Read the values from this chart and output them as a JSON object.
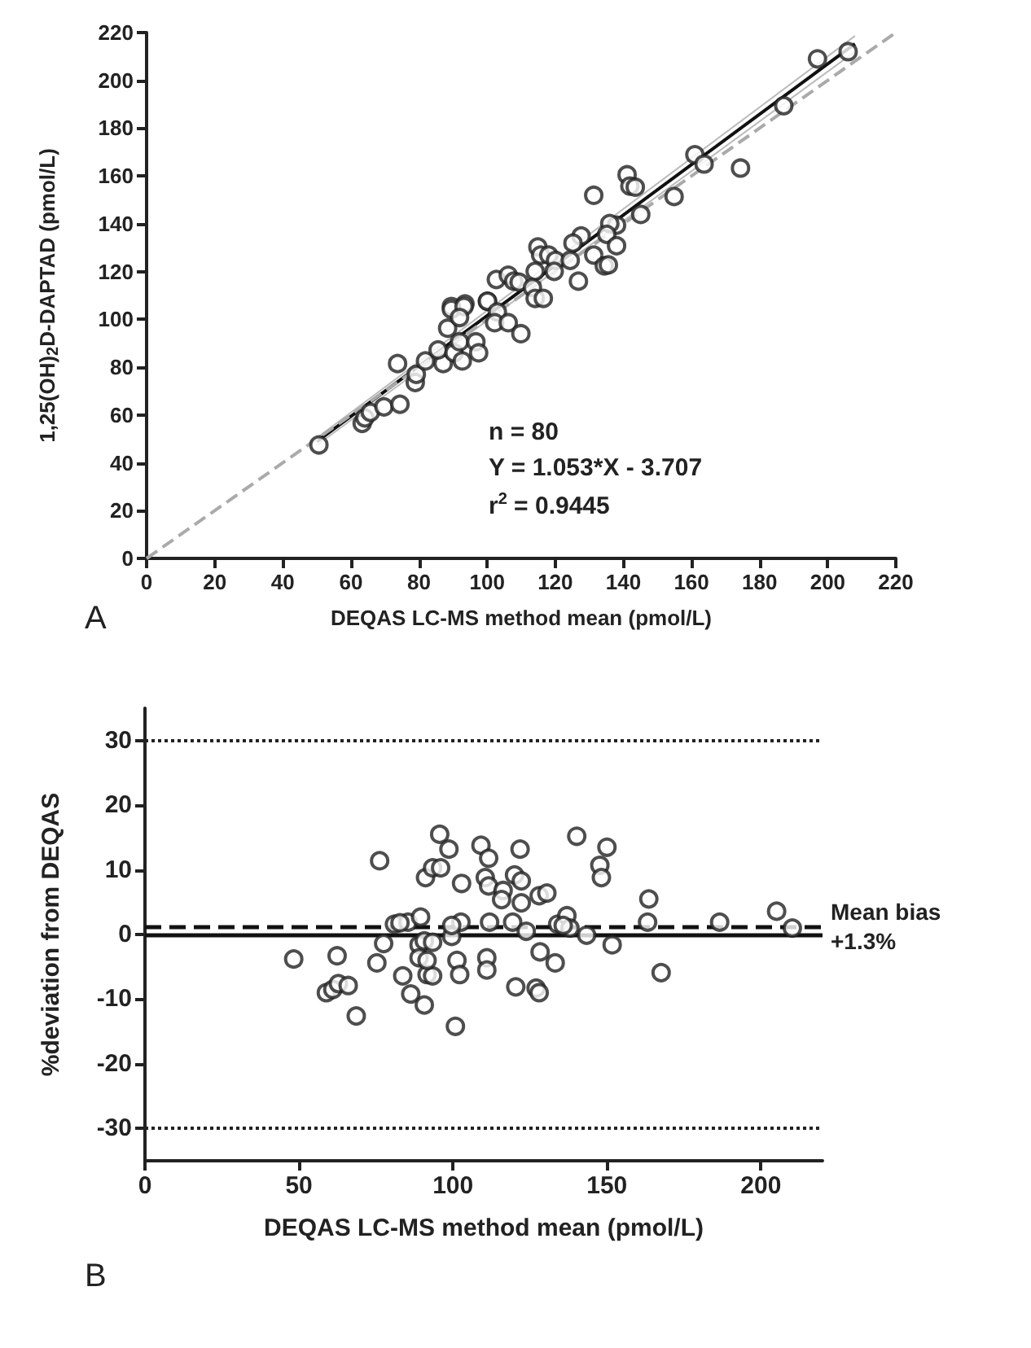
{
  "chart_data": [
    {
      "type": "scatter",
      "xlabel": "DEQAS LC-MS method mean (pmol/L)",
      "ylabel": "1,25(OH)$_{2}$D-DAPTAD (pmol/L)",
      "xlim": [
        0,
        220
      ],
      "ylim": [
        0,
        220
      ],
      "xticks": [
        0,
        20,
        40,
        60,
        80,
        100,
        120,
        140,
        160,
        180,
        200,
        220
      ],
      "yticks": [
        0,
        20,
        40,
        60,
        80,
        100,
        120,
        140,
        160,
        180,
        200,
        220
      ],
      "annotations": [
        "n = 80",
        "Y = 1.053*X - 3.707",
        "r$^{2}$ = 0.9445",
        "A"
      ],
      "series": [
        {
          "color": "#222222",
          "marker": "circle",
          "x": [
            197,
            206,
            187.1,
            161,
            163.7,
            174.4,
            154.9,
            145.1,
            141.1,
            141.9,
            143.5,
            131.3,
            138,
            136,
            135.1,
            138,
            127.6,
            125.2,
            131.3,
            134.4,
            135.6,
            126.8,
            114.9,
            115.7,
            118.1,
            120.1,
            124.4,
            114.1,
            119.7,
            102.7,
            106.2,
            107.8,
            109.4,
            113.3,
            114.1,
            116.5,
            100.1,
            93.5,
            89.5,
            50.6,
            63.3,
            64.1,
            65.7,
            69.7,
            74.4,
            73.7,
            78.9,
            79.2,
            81.9,
            87.1,
            85.6,
            90.3,
            92.7,
            91.9,
            96.7,
            97.5,
            88.4,
            89.5,
            93.2,
            91.9,
            100.1,
            103,
            102.2,
            106.2,
            109.9
          ],
          "values": [
            209,
            212,
            189.4,
            168.9,
            165,
            163.3,
            151.4,
            143.9,
            160.5,
            155.8,
            155.3,
            151.9,
            139.4,
            140.1,
            135.6,
            130.8,
            134.9,
            131.9,
            126.9,
            122.4,
            122.8,
            116,
            130.3,
            126.9,
            126.9,
            124.7,
            124.7,
            120.1,
            120.1,
            116.7,
            118.5,
            116,
            115.6,
            113.3,
            108.8,
            108.8,
            107.6,
            106.5,
            105.4,
            47.5,
            56.5,
            58.8,
            61.1,
            63.4,
            64.5,
            81.5,
            73.6,
            77,
            82.6,
            81.5,
            87.2,
            86,
            82.6,
            90.6,
            90.6,
            86,
            96.3,
            104.2,
            105.4,
            100.8,
            107.6,
            103.1,
            98.6,
            98.6,
            94
          ]
        },
        {
          "type": "line",
          "color": "#111111",
          "marker": "none",
          "line_style": "solid",
          "x": [
            50,
            208
          ],
          "values": [
            48.9,
            215.3
          ]
        },
        {
          "type": "line",
          "color": "#bbbbbb",
          "marker": "none",
          "line_style": "solid",
          "x": [
            50,
            208
          ],
          "values": [
            47.4,
            212.0
          ]
        },
        {
          "type": "line",
          "color": "#bbbbbb",
          "marker": "none",
          "line_style": "solid",
          "x": [
            50,
            208
          ],
          "values": [
            50.4,
            218.6
          ]
        },
        {
          "type": "line",
          "color": "#aaaaaa",
          "marker": "none",
          "line_style": "dashed",
          "x": [
            0,
            220
          ],
          "values": [
            0,
            220
          ]
        }
      ]
    },
    {
      "type": "scatter",
      "xlabel": "DEQAS LC-MS method mean (pmol/L)",
      "ylabel": "%deviation from DEQAS",
      "xlim": [
        0,
        220
      ],
      "ylim": [
        -35,
        35
      ],
      "xticks": [
        0,
        50,
        100,
        150,
        200
      ],
      "yticks": [
        -30,
        -20,
        -10,
        0,
        10,
        20,
        30
      ],
      "marker": "circle",
      "annotations": [
        "B"
      ],
      "ref_lines": [
        {
          "axis": "y",
          "value": 30,
          "color": "#222222",
          "line_style": "dotted"
        },
        {
          "axis": "y",
          "value": -30,
          "color": "#222222",
          "line_style": "dotted"
        },
        {
          "axis": "y",
          "value": 0,
          "color": "#111111",
          "line_style": "solid"
        },
        {
          "axis": "y",
          "value": 1.3,
          "color": "#111111",
          "line_style": "dashed",
          "label": "Mean bias +1.3%"
        }
      ],
      "series": [
        {
          "color": "#222222",
          "x": [
            48.3,
            62.4,
            58.9,
            61,
            62.8,
            66,
            68.6,
            76.2,
            75.3,
            77.5,
            81,
            83.7,
            86.3,
            85.4,
            89.5,
            90.7,
            89,
            90.7,
            89,
            91.6,
            93.4,
            93.4,
            91.1,
            93.4,
            96,
            95.7,
            98.7,
            99.6,
            102.8,
            102.6,
            101.3,
            102.2,
            100.8,
            109.1,
            111.6,
            110.5,
            111.6,
            111.9,
            111,
            111,
            116.3,
            115.8,
            119.4,
            120,
            121.8,
            122.2,
            122.2,
            123.8,
            120.4,
            127,
            128,
            128.3,
            128,
            130.5,
            133.2,
            134,
            137,
            138,
            143.4,
            140.2,
            150,
            147.7,
            148.2,
            151.7,
            163.6,
            163.2,
            167.6,
            186.6,
            205.1,
            210.2,
            91.6,
            82.8,
            99.6,
            135.8
          ],
          "values": [
            -3.8,
            -3.3,
            -9,
            -8.5,
            -7.6,
            -7.9,
            -12.6,
            11.4,
            -4.4,
            -1.4,
            1.6,
            -6.4,
            -9.2,
            1.9,
            2.7,
            -10.9,
            -1.6,
            -1,
            -3.6,
            -6.2,
            -6.4,
            -1.2,
            8.8,
            10.3,
            10.3,
            15.5,
            13.2,
            -0.3,
            7.9,
            1.9,
            -4,
            -6.2,
            -14.2,
            13.8,
            11.8,
            8.8,
            7.5,
            1.9,
            -3.6,
            -5.5,
            6.8,
            5.4,
            1.9,
            9.2,
            13.2,
            8.3,
            4.9,
            0.5,
            -8.1,
            -8.3,
            -9,
            -2.7,
            6,
            6.4,
            -4.4,
            1.6,
            2.9,
            1,
            -0.1,
            15.2,
            13.5,
            10.7,
            8.8,
            -1.6,
            5.5,
            1.9,
            -5.9,
            1.9,
            3.6,
            1,
            -4,
            1.8,
            1.4,
            1.4
          ]
        }
      ]
    }
  ]
}
